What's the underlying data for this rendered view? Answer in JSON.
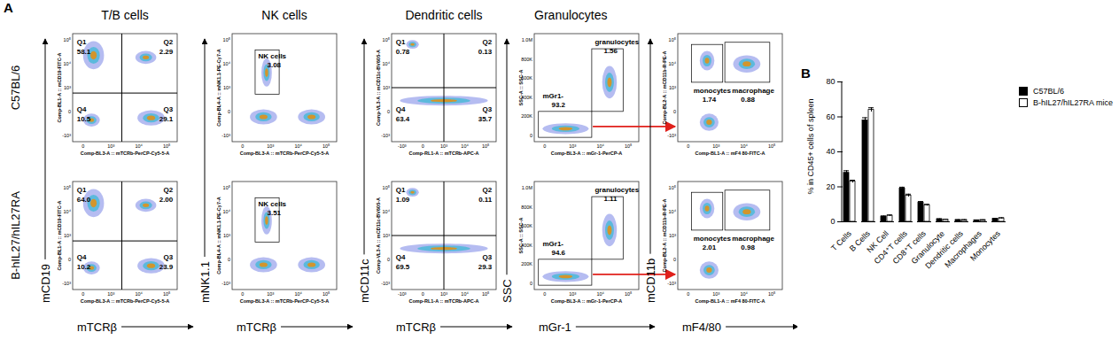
{
  "panel_a": {
    "label": "A",
    "rows": [
      "C57BL/6",
      "B-hIL27/hIL27RA"
    ],
    "columns": [
      {
        "title": "T/B cells",
        "kind": "quadrant",
        "xlabel": "mTCRβ",
        "ylabel": "mCD19",
        "x_channel": "Comp-BL3-A :: mTCRb-PerCP-Cy5-5-A",
        "y_channel": "Comp-BL1-A :: mCD19-FITC-A",
        "xticks": [
          "0",
          "10³",
          "10⁴",
          "10⁵"
        ],
        "yticks": [
          "10⁵",
          "10⁴",
          "10³",
          "0",
          "-10³"
        ],
        "gates": [
          [
            {
              "name": "Q1",
              "value": "58.1"
            },
            {
              "name": "Q2",
              "value": "2.29"
            },
            {
              "name": "Q3",
              "value": "29.1"
            },
            {
              "name": "Q4",
              "value": "10.5"
            }
          ],
          [
            {
              "name": "Q1",
              "value": "64.0"
            },
            {
              "name": "Q2",
              "value": "2.00"
            },
            {
              "name": "Q3",
              "value": "23.9"
            },
            {
              "name": "Q4",
              "value": "10.2"
            }
          ]
        ]
      },
      {
        "title": "NK cells",
        "kind": "gate",
        "xlabel": "mTCRβ",
        "ylabel": "mNK1.1",
        "x_channel": "Comp-BL3-A :: mTCRb-PerCP-Cy5-5-A",
        "y_channel": "Comp-BL4-A :: mNK1.1-PE-Cy7-A",
        "xticks": [
          "0",
          "10³",
          "10⁴",
          "10⁵"
        ],
        "yticks": [
          "10⁵",
          "10⁴",
          "10³",
          "0",
          "-10³"
        ],
        "gates": [
          [
            {
              "name": "NK cells",
              "value": "3.08"
            }
          ],
          [
            {
              "name": "NK cells",
              "value": "3.51"
            }
          ]
        ]
      },
      {
        "title": "Dendritic cells",
        "kind": "quadrant",
        "xlabel": "mTCRβ",
        "ylabel": "mCD11c",
        "x_channel": "Comp-RL1-A :: mTCRb-APC-A",
        "y_channel": "Comp-VL3-A :: mCD11c-BV605-A",
        "xticks": [
          "-10³",
          "0",
          "10³",
          "10⁴",
          "10⁵"
        ],
        "yticks": [
          "10⁵",
          "10⁴",
          "10³",
          "0",
          "-10³"
        ],
        "gates": [
          [
            {
              "name": "Q1",
              "value": "0.78"
            },
            {
              "name": "Q2",
              "value": "0.13"
            },
            {
              "name": "Q3",
              "value": "35.7"
            },
            {
              "name": "Q4",
              "value": "63.4"
            }
          ],
          [
            {
              "name": "Q1",
              "value": "1.09"
            },
            {
              "name": "Q2",
              "value": "0.11"
            },
            {
              "name": "Q3",
              "value": "29.3"
            },
            {
              "name": "Q4",
              "value": "69.5"
            }
          ]
        ]
      },
      {
        "title": "Granulocytes",
        "kind": "gate",
        "xlabel": "mGr-1",
        "ylabel": "SSC",
        "x_channel": "Comp-BL3-A :: mGr-1-PerCP-A",
        "y_channel": "SSC-A :: SSC-A",
        "xticks": [
          "0",
          "10³",
          "10⁴",
          "10⁵"
        ],
        "yticks": [
          "1.0M",
          "800K",
          "600K",
          "400K",
          "200K",
          "0"
        ],
        "gates": [
          [
            {
              "name": "granulocytes",
              "value": "1.56"
            },
            {
              "name": "mGr1-",
              "value": "93.2"
            }
          ],
          [
            {
              "name": "granulocytes",
              "value": "1.11"
            },
            {
              "name": "mGr1-",
              "value": "94.6"
            }
          ]
        ]
      },
      {
        "kind": "gate",
        "xlabel": "mF4/80",
        "ylabel": "mCD11b",
        "x_channel": "Comp-BL1-A :: mF4 80-FITC-A",
        "y_channel": "Comp-BL2-A :: mCD11b-R-PE-A",
        "xticks": [
          "0",
          "10³",
          "10⁴",
          "10⁵"
        ],
        "yticks": [
          "10⁵",
          "10⁴",
          "10³",
          "0",
          "-10³"
        ],
        "gates": [
          [
            {
              "name": "monocytes",
              "value": "1.74"
            },
            {
              "name": "macrophage",
              "value": "0.88"
            }
          ],
          [
            {
              "name": "monocytes",
              "value": "2.01"
            },
            {
              "name": "macrophage",
              "value": "0.98"
            }
          ]
        ]
      }
    ]
  },
  "chart_data": {
    "type": "bar",
    "label": "B",
    "ylabel": "% in CD45+ cells of spleen",
    "categories": [
      "T Cells",
      "B Cells",
      "NK Cell",
      "CD4⁺T cells",
      "CD8⁺T cells",
      "Granulocyte",
      "Dendritic cells",
      "Macrophages",
      "Monocytes"
    ],
    "series": [
      {
        "name": "C57BL/6",
        "color": "#000000",
        "values": [
          28,
          58,
          3,
          19,
          11,
          1.5,
          1,
          0.9,
          1.7
        ],
        "errors": [
          1.2,
          1.5,
          0.3,
          0.8,
          0.6,
          0.2,
          0.2,
          0.1,
          0.2
        ]
      },
      {
        "name": "B-hIL27/hIL27RA mice",
        "color": "#ffffff",
        "values": [
          23,
          64,
          3.5,
          15,
          9.5,
          1.2,
          1,
          1,
          2
        ],
        "errors": [
          0.8,
          1.2,
          0.4,
          0.8,
          0.5,
          0.2,
          0.2,
          0.1,
          0.3
        ]
      }
    ],
    "ylim": [
      0,
      80
    ],
    "yticks": [
      0,
      20,
      40,
      60,
      80
    ],
    "grid": false,
    "legend": "top-right"
  }
}
